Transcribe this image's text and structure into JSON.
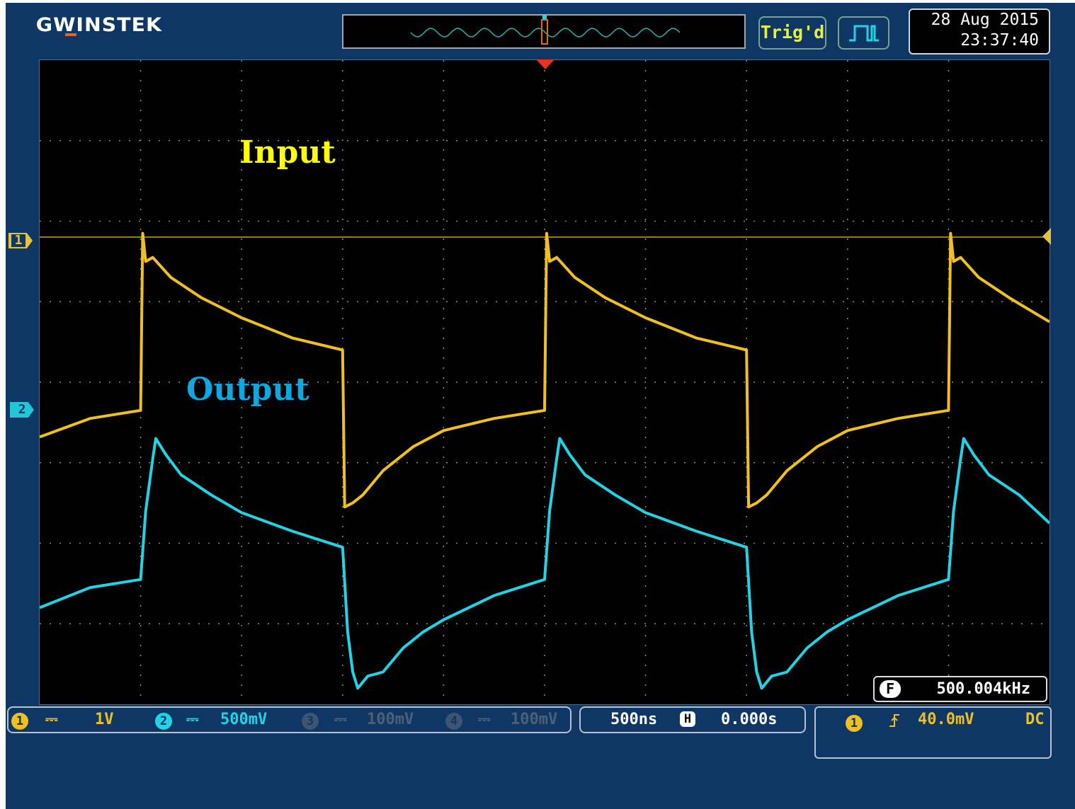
{
  "header": {
    "logo": "GWINSTEK",
    "trigger_status": "Trig'd",
    "run_mode_icon": "pulse-run-icon",
    "date": "28 Aug 2015",
    "time": "23:37:40"
  },
  "annotations": {
    "input_label": "Input",
    "output_label": "Output"
  },
  "markers": {
    "ch1": "1",
    "ch2": "2"
  },
  "frequency": {
    "badge": "F",
    "value": "500.004kHz"
  },
  "channels": [
    {
      "num": "1",
      "coupling": "⎓",
      "scale": "1V",
      "color": "#f0c020",
      "active": true
    },
    {
      "num": "2",
      "coupling": "⎓",
      "scale": "500mV",
      "color": "#22d3e6",
      "active": true
    },
    {
      "num": "3",
      "coupling": "⎓",
      "scale": "100mV",
      "color": "#5a6a7a",
      "active": false
    },
    {
      "num": "4",
      "coupling": "⎓",
      "scale": "100mV",
      "color": "#5a6a7a",
      "active": false
    }
  ],
  "timebase": {
    "scale": "500ns",
    "h_badge": "H",
    "position": "0.000s"
  },
  "trigger": {
    "source": "1",
    "slope_icon": "rising-edge-icon",
    "level": "40.0mV",
    "coupling": "DC"
  },
  "colors": {
    "ch1": "#f0c020",
    "ch2": "#22d3e6",
    "background": "#0e3766",
    "grid": "#8a8a8a"
  },
  "chart_data": {
    "type": "line",
    "title": "",
    "xlabel": "",
    "ylabel": "",
    "grid": true,
    "x_divisions": 10,
    "y_divisions": 8,
    "x_range_div": [
      0,
      10
    ],
    "y_range_div": [
      -4,
      4
    ],
    "series": [
      {
        "name": "Input",
        "color": "#f0c020",
        "points": [
          [
            0.0,
            -0.68
          ],
          [
            0.5,
            -0.45
          ],
          [
            1.0,
            -0.35
          ],
          [
            1.02,
            1.85
          ],
          [
            1.05,
            1.5
          ],
          [
            1.12,
            1.55
          ],
          [
            1.3,
            1.3
          ],
          [
            1.6,
            1.05
          ],
          [
            2.0,
            0.8
          ],
          [
            2.5,
            0.55
          ],
          [
            3.0,
            0.4
          ],
          [
            3.02,
            -1.55
          ],
          [
            3.1,
            -1.5
          ],
          [
            3.2,
            -1.4
          ],
          [
            3.4,
            -1.1
          ],
          [
            3.7,
            -0.8
          ],
          [
            4.0,
            -0.6
          ],
          [
            4.5,
            -0.45
          ],
          [
            5.0,
            -0.35
          ],
          [
            5.02,
            1.85
          ],
          [
            5.05,
            1.5
          ],
          [
            5.12,
            1.55
          ],
          [
            5.3,
            1.3
          ],
          [
            5.6,
            1.05
          ],
          [
            6.0,
            0.8
          ],
          [
            6.5,
            0.55
          ],
          [
            7.0,
            0.4
          ],
          [
            7.02,
            -1.55
          ],
          [
            7.1,
            -1.5
          ],
          [
            7.2,
            -1.4
          ],
          [
            7.4,
            -1.1
          ],
          [
            7.7,
            -0.8
          ],
          [
            8.0,
            -0.6
          ],
          [
            8.5,
            -0.45
          ],
          [
            9.0,
            -0.35
          ],
          [
            9.02,
            1.85
          ],
          [
            9.05,
            1.5
          ],
          [
            9.12,
            1.55
          ],
          [
            9.3,
            1.3
          ],
          [
            9.6,
            1.05
          ],
          [
            10.0,
            0.75
          ]
        ]
      },
      {
        "name": "Output",
        "color": "#22d3e6",
        "points": [
          [
            0.0,
            -2.8
          ],
          [
            0.5,
            -2.55
          ],
          [
            1.0,
            -2.45
          ],
          [
            1.05,
            -1.6
          ],
          [
            1.12,
            -0.95
          ],
          [
            1.15,
            -0.7
          ],
          [
            1.25,
            -0.9
          ],
          [
            1.4,
            -1.15
          ],
          [
            1.7,
            -1.4
          ],
          [
            2.0,
            -1.62
          ],
          [
            2.5,
            -1.85
          ],
          [
            3.0,
            -2.05
          ],
          [
            3.05,
            -3.1
          ],
          [
            3.1,
            -3.6
          ],
          [
            3.15,
            -3.8
          ],
          [
            3.25,
            -3.65
          ],
          [
            3.4,
            -3.6
          ],
          [
            3.6,
            -3.3
          ],
          [
            3.8,
            -3.1
          ],
          [
            4.0,
            -2.95
          ],
          [
            4.5,
            -2.65
          ],
          [
            5.0,
            -2.45
          ],
          [
            5.05,
            -1.6
          ],
          [
            5.12,
            -0.95
          ],
          [
            5.15,
            -0.7
          ],
          [
            5.25,
            -0.9
          ],
          [
            5.4,
            -1.15
          ],
          [
            5.7,
            -1.4
          ],
          [
            6.0,
            -1.62
          ],
          [
            6.5,
            -1.85
          ],
          [
            7.0,
            -2.05
          ],
          [
            7.05,
            -3.1
          ],
          [
            7.1,
            -3.6
          ],
          [
            7.15,
            -3.8
          ],
          [
            7.25,
            -3.65
          ],
          [
            7.4,
            -3.6
          ],
          [
            7.6,
            -3.3
          ],
          [
            7.8,
            -3.1
          ],
          [
            8.0,
            -2.95
          ],
          [
            8.5,
            -2.65
          ],
          [
            9.0,
            -2.45
          ],
          [
            9.05,
            -1.6
          ],
          [
            9.12,
            -0.95
          ],
          [
            9.15,
            -0.7
          ],
          [
            9.25,
            -0.9
          ],
          [
            9.4,
            -1.15
          ],
          [
            9.7,
            -1.4
          ],
          [
            10.0,
            -1.75
          ]
        ]
      }
    ]
  }
}
